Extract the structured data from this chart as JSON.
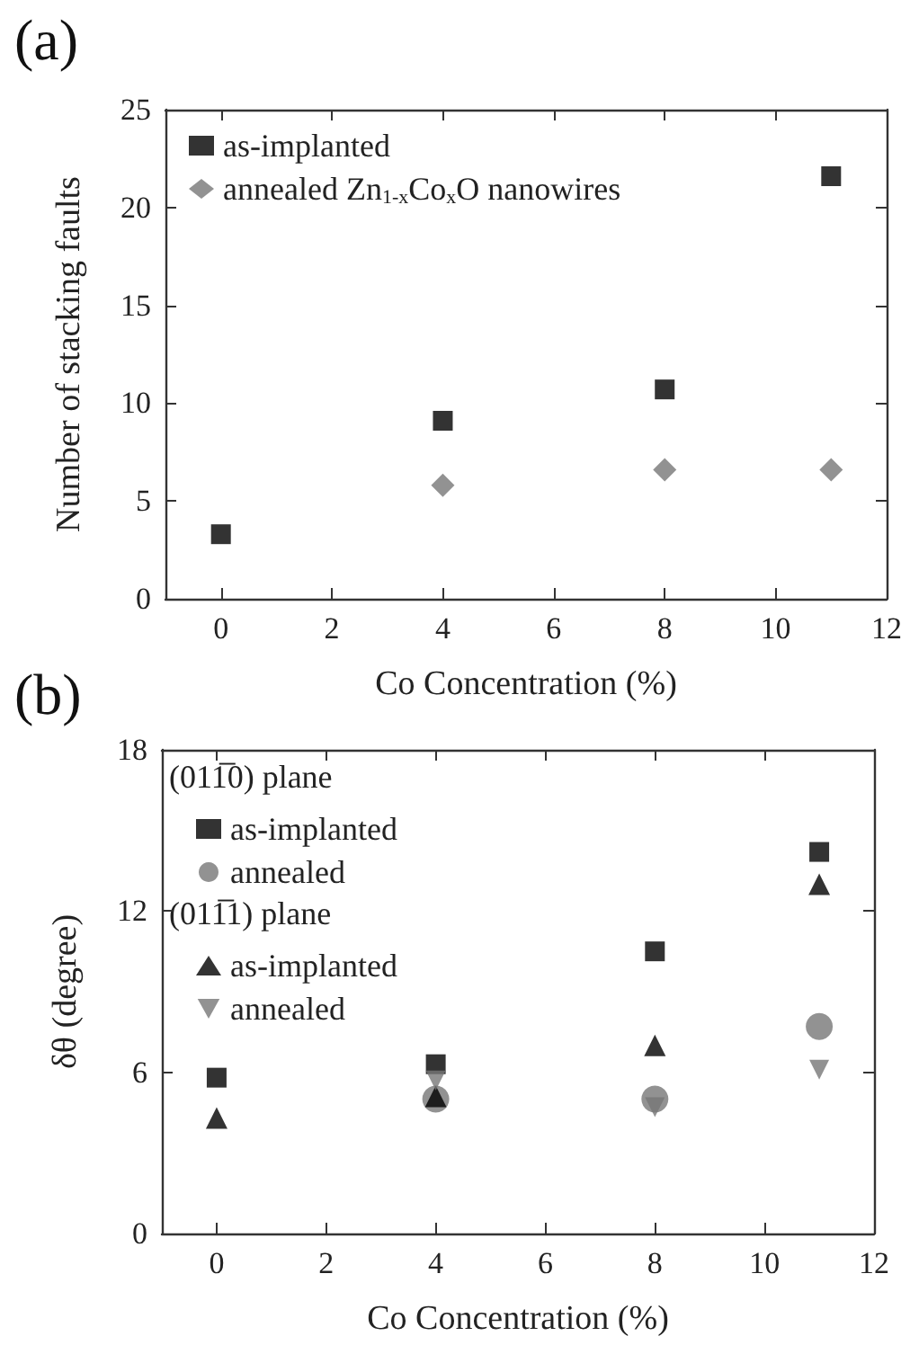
{
  "chart_data": [
    {
      "type": "scatter",
      "title": "(a)",
      "xlabel": "Co Concentration (%)",
      "ylabel": "Number of stacking faults",
      "xlim": [
        -1,
        12
      ],
      "xticks": [
        0,
        2,
        4,
        6,
        8,
        10,
        12
      ],
      "ylim": [
        0,
        25
      ],
      "yticks": [
        0,
        5,
        10,
        15,
        20,
        25
      ],
      "grid": false,
      "legend": "top left",
      "x": [
        0,
        4,
        8,
        11
      ],
      "series": [
        {
          "name": "as-implanted",
          "color": "#000000",
          "marker": "square",
          "values": [
            3.3,
            9.1,
            10.7,
            21.6
          ]
        },
        {
          "name": "annealed Zn$_{1-x}$Co$_{x}$O nanowires",
          "color": "#777777",
          "marker": "diamond",
          "values": [
            null,
            5.8,
            6.6,
            6.6
          ]
        }
      ]
    },
    {
      "type": "scatter",
      "title": "(b)",
      "xlabel": "Co Concentration (%)",
      "ylabel": "δθ (degree)",
      "xlim": [
        -1,
        12
      ],
      "xticks": [
        0,
        2,
        4,
        6,
        8,
        10,
        12
      ],
      "ylim": [
        0,
        18
      ],
      "yticks": [
        0,
        6,
        12,
        18
      ],
      "grid": false,
      "legend": "top left",
      "x": [
        0,
        4,
        8,
        11
      ],
      "annotations": [
        "(011̅0) plane",
        "(011̅1) plane"
      ],
      "series": [
        {
          "name": "as-implanted",
          "color": "#000000",
          "marker": "square",
          "values": [
            5.8,
            6.3,
            10.5,
            14.2
          ]
        },
        {
          "name": "annealed",
          "color": "#777777",
          "marker": "circle",
          "values": [
            null,
            5.0,
            5.0,
            7.7
          ]
        },
        {
          "name": "as-implanted",
          "color": "#000000",
          "marker": "triangle",
          "values": [
            4.3,
            5.1,
            7.0,
            13.0
          ]
        },
        {
          "name": "annealed",
          "color": "#777777",
          "marker": "triangle-down",
          "values": [
            null,
            5.7,
            4.7,
            6.1
          ]
        }
      ]
    }
  ]
}
